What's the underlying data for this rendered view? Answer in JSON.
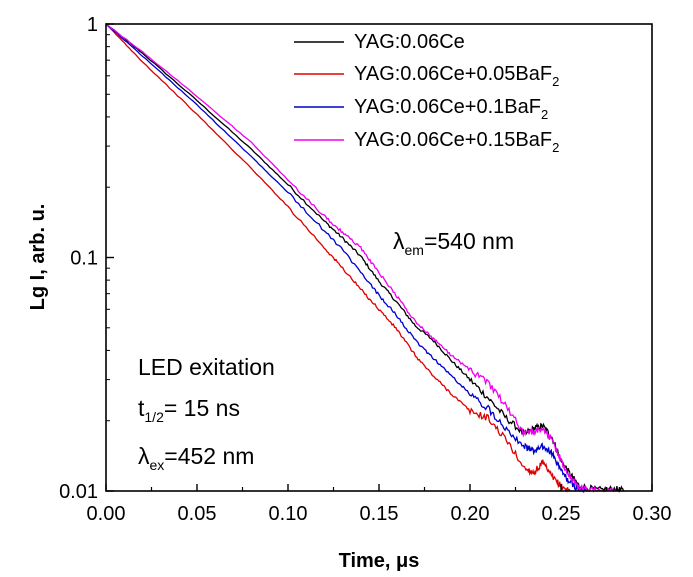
{
  "chart_data": {
    "type": "line",
    "y_scale": "log",
    "xlim": [
      0.0,
      0.3
    ],
    "ylim": [
      0.01,
      1
    ],
    "xlabel_main": "Time, ",
    "xlabel_unit": "μs",
    "ylabel": "Lg I, arb. u.",
    "grid": false,
    "legend_position": "top-right",
    "x_ticks": [
      "0.00",
      "0.05",
      "0.10",
      "0.15",
      "0.20",
      "0.25",
      "0.30"
    ],
    "x_tick_values": [
      0.0,
      0.05,
      0.1,
      0.15,
      0.2,
      0.25,
      0.3
    ],
    "y_ticks": [
      "0.01",
      "0.1",
      "1"
    ],
    "y_tick_values": [
      0.01,
      0.1,
      1
    ],
    "series": [
      {
        "legend_main": "YAG:0.06Ce",
        "legend_sub": "",
        "color": "#000000",
        "x": [
          0.0,
          0.02,
          0.05,
          0.08,
          0.1,
          0.12,
          0.13,
          0.14,
          0.15,
          0.16,
          0.17,
          0.18,
          0.19,
          0.2,
          0.21,
          0.22,
          0.23,
          0.235,
          0.24,
          0.245,
          0.25,
          0.255,
          0.26,
          0.27,
          0.28,
          0.285
        ],
        "y": [
          1.0,
          0.75,
          0.47,
          0.29,
          0.205,
          0.143,
          0.121,
          0.101,
          0.079,
          0.064,
          0.051,
          0.044,
          0.036,
          0.03,
          0.025,
          0.0205,
          0.0175,
          0.0185,
          0.019,
          0.017,
          0.0135,
          0.0118,
          0.0105,
          0.0101,
          0.0102,
          0.01
        ]
      },
      {
        "legend_main": "YAG:0.06Ce+0.05BaF",
        "legend_sub": "2",
        "color": "#dd0000",
        "x": [
          0.0,
          0.02,
          0.05,
          0.08,
          0.1,
          0.12,
          0.13,
          0.14,
          0.15,
          0.16,
          0.17,
          0.18,
          0.19,
          0.2,
          0.21,
          0.22,
          0.23,
          0.235,
          0.24,
          0.245,
          0.25,
          0.255
        ],
        "y": [
          1.0,
          0.69,
          0.41,
          0.24,
          0.165,
          0.11,
          0.09,
          0.073,
          0.06,
          0.049,
          0.038,
          0.031,
          0.026,
          0.022,
          0.0205,
          0.0165,
          0.0125,
          0.012,
          0.0132,
          0.0115,
          0.0105,
          0.01
        ]
      },
      {
        "legend_main": "YAG:0.06Ce+0.1BaF",
        "legend_sub": "2",
        "color": "#0000cc",
        "x": [
          0.0,
          0.02,
          0.05,
          0.08,
          0.1,
          0.12,
          0.13,
          0.14,
          0.15,
          0.16,
          0.17,
          0.18,
          0.19,
          0.2,
          0.21,
          0.22,
          0.23,
          0.235,
          0.24,
          0.245,
          0.25,
          0.255,
          0.26,
          0.265
        ],
        "y": [
          1.0,
          0.73,
          0.45,
          0.27,
          0.19,
          0.13,
          0.108,
          0.086,
          0.069,
          0.056,
          0.044,
          0.037,
          0.031,
          0.026,
          0.0225,
          0.0185,
          0.0155,
          0.0148,
          0.0155,
          0.0145,
          0.0122,
          0.0108,
          0.0102,
          0.01
        ]
      },
      {
        "legend_main": "YAG:0.06Ce+0.15BaF",
        "legend_sub": "2",
        "color": "#ee00ee",
        "x": [
          0.0,
          0.02,
          0.05,
          0.08,
          0.1,
          0.12,
          0.13,
          0.14,
          0.15,
          0.16,
          0.17,
          0.18,
          0.19,
          0.2,
          0.21,
          0.22,
          0.23,
          0.235,
          0.24,
          0.245,
          0.25,
          0.255,
          0.26,
          0.27,
          0.28
        ],
        "y": [
          1.0,
          0.76,
          0.49,
          0.31,
          0.215,
          0.15,
          0.128,
          0.11,
          0.086,
          0.068,
          0.053,
          0.045,
          0.038,
          0.033,
          0.029,
          0.023,
          0.0175,
          0.018,
          0.0185,
          0.0165,
          0.0135,
          0.0115,
          0.0103,
          0.01,
          0.01
        ]
      }
    ],
    "annotations": {
      "em_prefix": "λ",
      "em_sub": "em",
      "em_suffix": "=540 nm",
      "led_line": "LED exitation",
      "t_prefix": "t",
      "t_sub": "1/2",
      "t_suffix": "= 15 ns",
      "ex_prefix": "λ",
      "ex_sub": "ex",
      "ex_suffix": "=452 nm"
    }
  }
}
